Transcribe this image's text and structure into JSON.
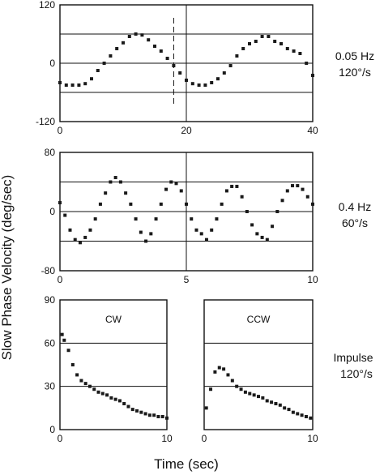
{
  "ylabel": "Slow Phase Velocity (deg/sec)",
  "xlabel": "Time (sec)",
  "chart_data": [
    {
      "type": "scatter",
      "id": "p1",
      "xlim": [
        0,
        40
      ],
      "ylim": [
        -120,
        120
      ],
      "xticks": [
        "0",
        "20",
        "40"
      ],
      "yticks": [
        "120",
        "0",
        "-120"
      ],
      "gridlines_y": [
        -60,
        0,
        60
      ],
      "vline_x": 20,
      "dashed_vline_x": 18,
      "annotation": [
        "0.05 Hz",
        "120°/s"
      ],
      "series": [
        {
          "x": [
            0,
            1,
            2,
            3,
            4,
            5,
            6,
            7,
            8,
            9,
            10,
            11,
            12,
            13,
            14,
            15,
            16,
            17,
            18,
            19,
            20,
            21,
            22,
            23,
            24,
            25,
            26,
            27,
            28,
            29,
            30,
            31,
            32,
            33,
            34,
            35,
            36,
            37,
            38,
            39,
            40
          ],
          "y": [
            -40,
            -45,
            -45,
            -45,
            -42,
            -32,
            -15,
            0,
            15,
            30,
            42,
            55,
            60,
            58,
            48,
            35,
            25,
            10,
            -5,
            -20,
            -35,
            -42,
            -45,
            -45,
            -40,
            -32,
            -20,
            -5,
            15,
            30,
            40,
            45,
            55,
            55,
            45,
            40,
            30,
            25,
            20,
            0,
            -25
          ]
        }
      ]
    },
    {
      "type": "scatter",
      "id": "p2",
      "xlim": [
        0,
        10
      ],
      "ylim": [
        -80,
        80
      ],
      "xticks": [
        "0",
        "5",
        "10"
      ],
      "yticks": [
        "80",
        "0",
        "-80"
      ],
      "gridlines_y": [
        -40,
        0,
        40
      ],
      "vline_x": 5,
      "annotation": [
        "0.4 Hz",
        "60°/s"
      ],
      "series": [
        {
          "x": [
            0,
            0.2,
            0.4,
            0.6,
            0.8,
            1.0,
            1.2,
            1.4,
            1.6,
            1.8,
            2.0,
            2.2,
            2.4,
            2.6,
            2.8,
            3.0,
            3.2,
            3.4,
            3.6,
            3.8,
            4.0,
            4.2,
            4.4,
            4.6,
            4.8,
            5.0,
            5.2,
            5.4,
            5.6,
            5.8,
            6.0,
            6.2,
            6.4,
            6.6,
            6.8,
            7.0,
            7.2,
            7.4,
            7.6,
            7.8,
            8.0,
            8.2,
            8.4,
            8.6,
            8.8,
            9.0,
            9.2,
            9.4,
            9.6,
            9.8,
            10.0
          ],
          "y": [
            12,
            -5,
            -25,
            -38,
            -42,
            -35,
            -25,
            -10,
            10,
            25,
            40,
            46,
            40,
            25,
            10,
            -10,
            -28,
            -40,
            -30,
            -10,
            10,
            30,
            40,
            38,
            28,
            10,
            -10,
            -25,
            -30,
            -38,
            -25,
            -10,
            10,
            28,
            34,
            34,
            20,
            0,
            -18,
            -30,
            -35,
            -38,
            -20,
            0,
            15,
            28,
            35,
            35,
            30,
            20,
            10
          ]
        }
      ]
    },
    {
      "type": "scatter",
      "id": "p3",
      "title": "CW",
      "xlim": [
        0,
        10
      ],
      "ylim": [
        0,
        90
      ],
      "xticks": [
        "0",
        "10"
      ],
      "yticks": [
        "90",
        "60",
        "30",
        "0"
      ],
      "gridlines_y": [
        30,
        60
      ],
      "series": [
        {
          "x": [
            0.2,
            0.4,
            0.8,
            1.2,
            1.6,
            2.0,
            2.4,
            2.8,
            3.2,
            3.6,
            4.0,
            4.4,
            4.8,
            5.2,
            5.6,
            6.0,
            6.4,
            6.8,
            7.2,
            7.6,
            8.0,
            8.4,
            8.8,
            9.2,
            9.6,
            10.0
          ],
          "y": [
            66,
            62,
            55,
            45,
            38,
            34,
            32,
            30,
            28,
            26,
            25,
            24,
            22,
            21,
            20,
            18,
            16,
            14,
            13,
            12,
            11,
            10,
            10,
            9,
            9,
            8
          ]
        }
      ]
    },
    {
      "type": "scatter",
      "id": "p4",
      "title": "CCW",
      "xlim": [
        0,
        10
      ],
      "ylim": [
        0,
        90
      ],
      "xticks": [
        "0",
        "10"
      ],
      "yticks": [],
      "gridlines_y": [
        30,
        60
      ],
      "series": [
        {
          "x": [
            0.2,
            0.6,
            1.0,
            1.4,
            1.8,
            2.2,
            2.6,
            3.0,
            3.4,
            3.8,
            4.2,
            4.6,
            5.0,
            5.4,
            5.8,
            6.2,
            6.6,
            7.0,
            7.4,
            7.8,
            8.2,
            8.6,
            9.0,
            9.4,
            9.8
          ],
          "y": [
            15,
            28,
            40,
            43,
            42,
            38,
            34,
            30,
            28,
            26,
            25,
            24,
            23,
            22,
            20,
            19,
            18,
            17,
            15,
            14,
            12,
            11,
            10,
            9,
            8
          ]
        }
      ]
    }
  ],
  "impulse_annotation": [
    "Impulse",
    "120°/s"
  ]
}
